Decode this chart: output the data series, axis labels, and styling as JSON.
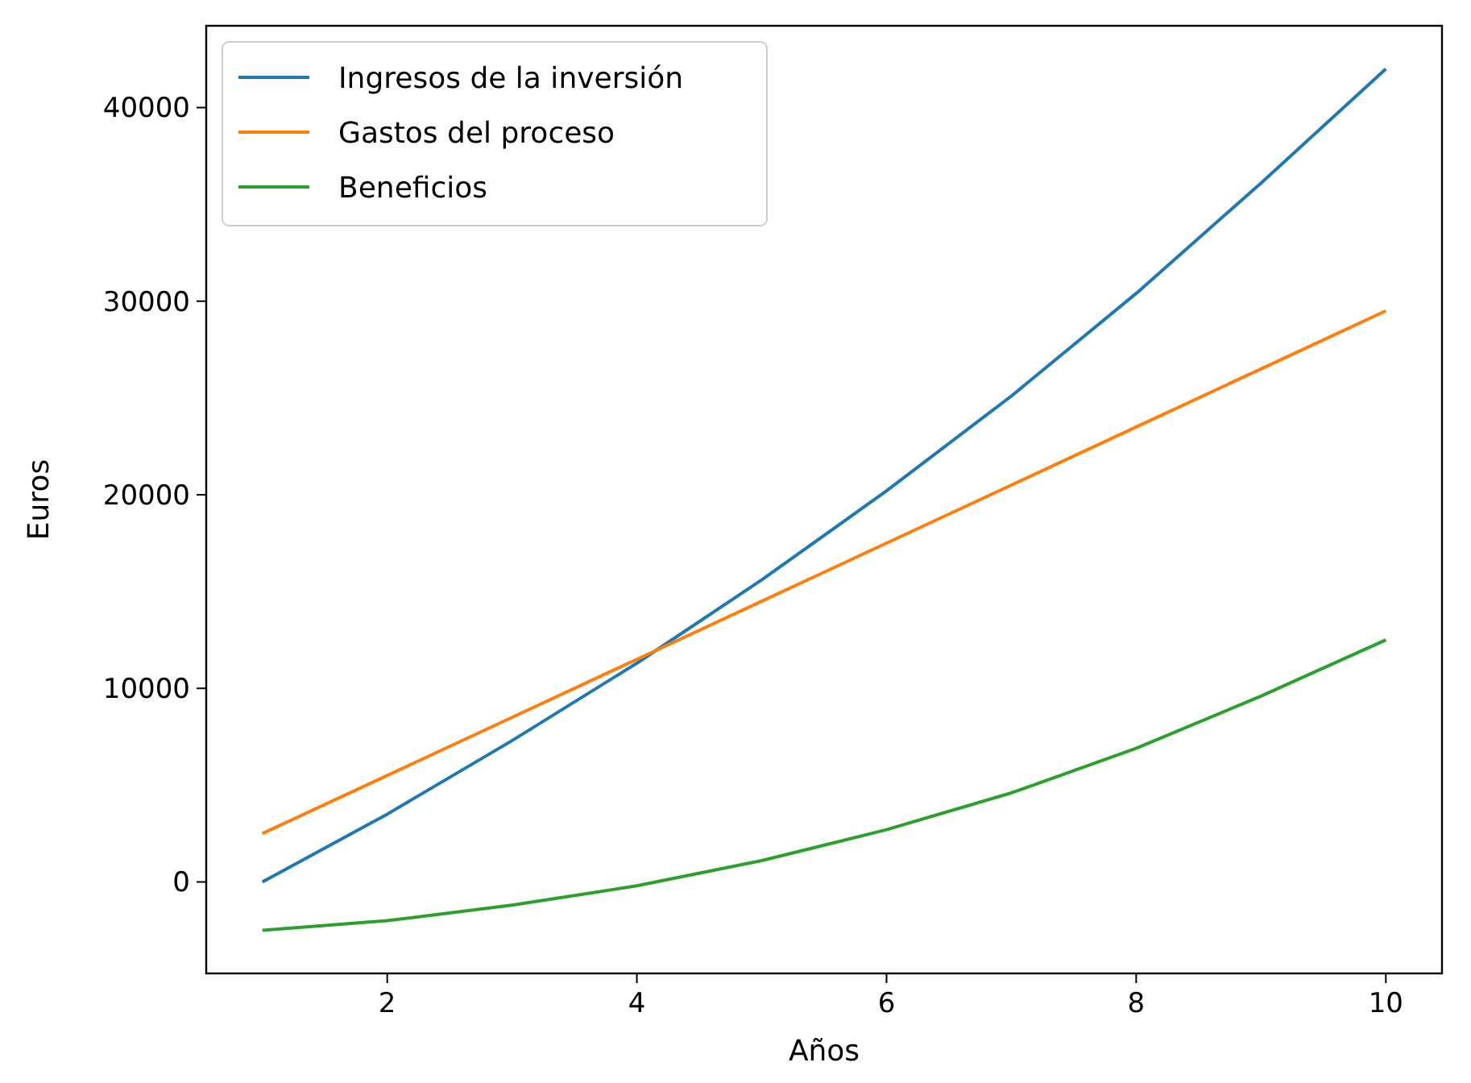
{
  "chart_data": {
    "type": "line",
    "xlabel": "Años",
    "ylabel": "Euros",
    "x": [
      1,
      2,
      3,
      4,
      5,
      6,
      7,
      8,
      9,
      10
    ],
    "series": [
      {
        "name": "Ingresos de la inversión",
        "color": "#1f77b4",
        "values": [
          0,
          3500,
          7300,
          11300,
          15600,
          20200,
          25100,
          30400,
          36100,
          42000
        ]
      },
      {
        "name": "Gastos del proceso",
        "color": "#ff7f0e",
        "values": [
          2500,
          5500,
          8500,
          11500,
          14500,
          17500,
          20500,
          23500,
          26500,
          29500
        ]
      },
      {
        "name": "Beneficios",
        "color": "#2ca02c",
        "values": [
          -2500,
          -2000,
          -1200,
          -200,
          1100,
          2700,
          4600,
          6900,
          9600,
          12500
        ]
      }
    ],
    "xlim": [
      0.55,
      10.45
    ],
    "xticks": [
      2,
      4,
      6,
      8,
      10
    ],
    "ylim": [
      -4725,
      44225
    ],
    "yticks": [
      0,
      10000,
      20000,
      30000,
      40000
    ],
    "legend": "top left",
    "grid": false
  }
}
